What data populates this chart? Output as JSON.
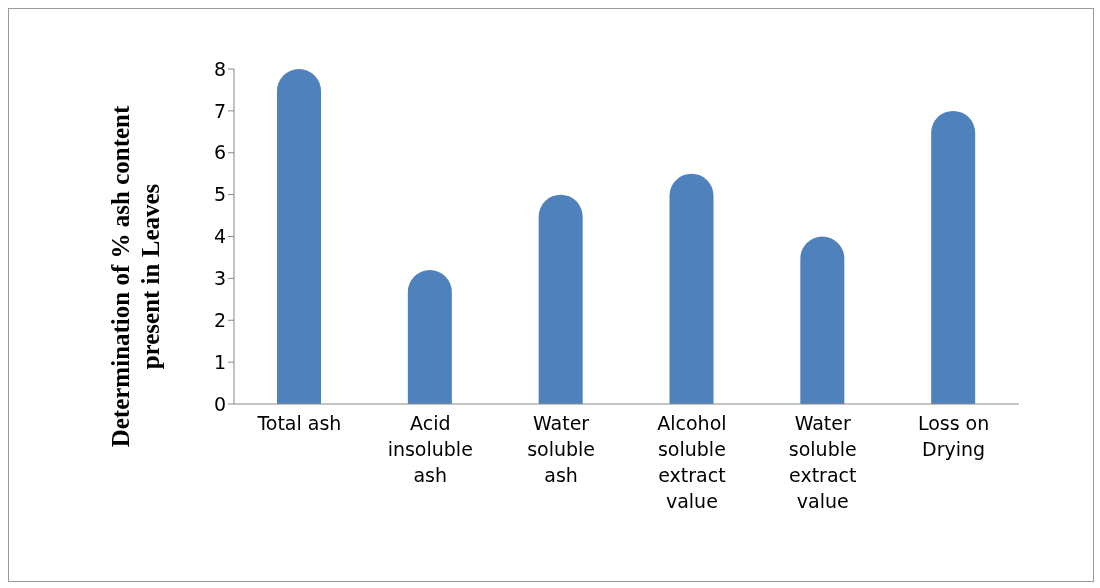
{
  "chart_data": {
    "type": "bar",
    "ylabel": "Determination of % ash content present in Leaves",
    "categories": [
      "Total ash",
      "Acid insoluble ash",
      "Water soluble ash",
      "Alcohol soluble extract value",
      "Water soluble extract value",
      "Loss on Drying"
    ],
    "values": [
      8,
      3.2,
      5,
      5.5,
      4,
      7
    ],
    "color": "#4f81bd",
    "ylim": [
      0,
      8
    ],
    "yticks": [
      0,
      1,
      2,
      3,
      4,
      5,
      6,
      7,
      8
    ],
    "grid": false,
    "legend": false
  }
}
